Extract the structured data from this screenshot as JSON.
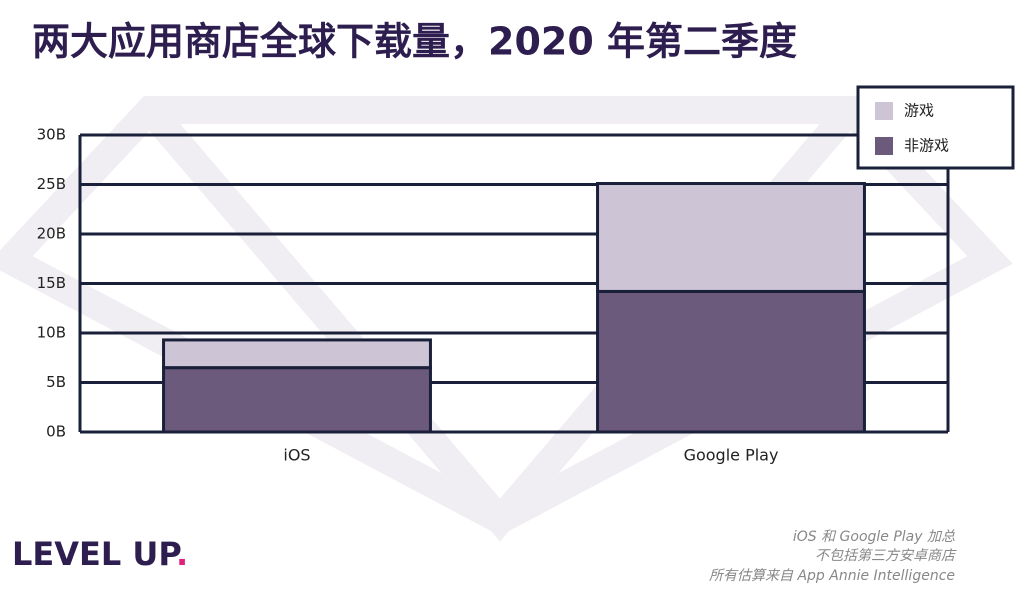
{
  "chart_data": {
    "type": "stacked-bar",
    "title": "两大应用商店全球下载量，2020 年第二季度",
    "categories": [
      "iOS",
      "Google Play"
    ],
    "series": [
      {
        "name": "非游戏",
        "color": "#6b5a7b",
        "values": [
          6.5,
          14.2
        ]
      },
      {
        "name": "游戏",
        "color": "#cdc5d6",
        "values": [
          2.8,
          10.9
        ]
      }
    ],
    "ylim": [
      0,
      30
    ],
    "yticks": [
      {
        "value": 0,
        "label": "0B"
      },
      {
        "value": 5,
        "label": "5B"
      },
      {
        "value": 10,
        "label": "10B"
      },
      {
        "value": 15,
        "label": "15B"
      },
      {
        "value": 20,
        "label": "20B"
      },
      {
        "value": 25,
        "label": "25B"
      },
      {
        "value": 30,
        "label": "30B"
      }
    ],
    "grid": true,
    "legend": "top-right",
    "notes": [
      "iOS 和 Google Play 加总",
      "不包括第三方安卓商店",
      "所有估算来自 App Annie Intelligence"
    ]
  },
  "logo": {
    "text": "LEVEL UP",
    "dot": "."
  }
}
